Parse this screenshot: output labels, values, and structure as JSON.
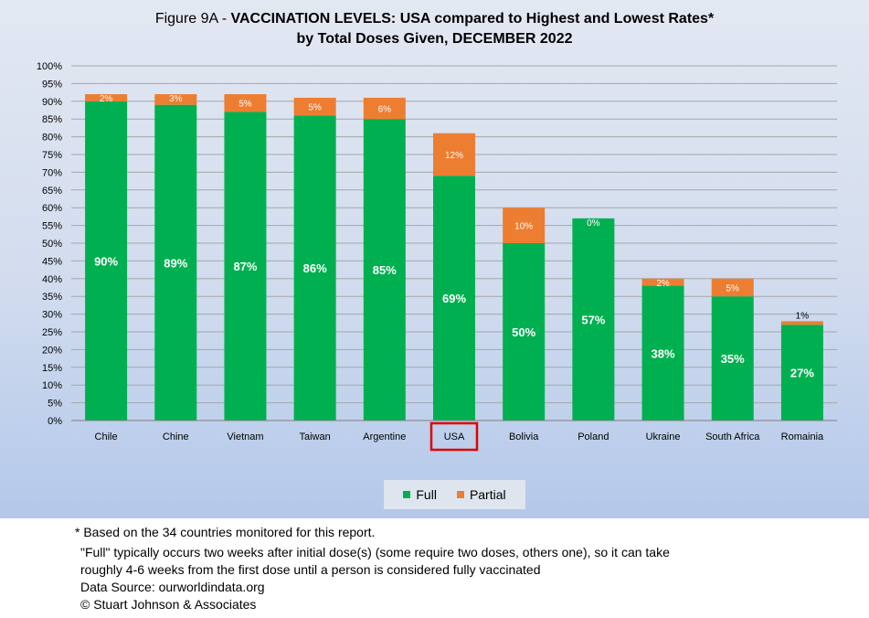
{
  "title": {
    "prefix": "Figure 9A - ",
    "bold": "VACCINATION LEVELS:  USA compared to Highest and Lowest Rates*",
    "line2": "by Total Doses Given, DECEMBER 2022"
  },
  "colors": {
    "full": "#00b050",
    "partial": "#ed7d31",
    "highlight_box": "#e00000"
  },
  "chart_data": {
    "type": "bar",
    "stacked": true,
    "categories": [
      "Chile",
      "Chine",
      "Vietnam",
      "Taiwan",
      "Argentine",
      "USA",
      "Bolivia",
      "Poland",
      "Ukraine",
      "South Africa",
      "Romainia"
    ],
    "series": [
      {
        "name": "Full",
        "values": [
          90,
          89,
          87,
          86,
          85,
          69,
          50,
          57,
          38,
          35,
          27
        ],
        "labels": [
          "90%",
          "89%",
          "87%",
          "86%",
          "85%",
          "69%",
          "50%",
          "57%",
          "38%",
          "35%",
          "27%"
        ]
      },
      {
        "name": "Partial",
        "values": [
          2,
          3,
          5,
          5,
          6,
          12,
          10,
          0,
          2,
          5,
          1
        ],
        "labels": [
          "2%",
          "3%",
          "5%",
          "5%",
          "6%",
          "12%",
          "10%",
          "0%",
          "2%",
          "5%",
          "1%"
        ]
      }
    ],
    "ylim": [
      0,
      100
    ],
    "yticks": [
      "0%",
      "5%",
      "10%",
      "15%",
      "20%",
      "25%",
      "30%",
      "35%",
      "40%",
      "45%",
      "50%",
      "55%",
      "60%",
      "65%",
      "70%",
      "75%",
      "80%",
      "85%",
      "90%",
      "95%",
      "100%"
    ],
    "grid": true,
    "highlighted_category": "USA",
    "legend_position": "bottom"
  },
  "notes": {
    "line1": "* Based on the 34 countries monitored for this report.",
    "line2": "\"Full\" typically occurs two weeks after initial dose(s) (some require two doses, others one),  so it can take",
    "line3": "roughly 4-6 weeks from the first dose until a person is considered fully vaccinated",
    "line4": "Data Source:  ourworldindata.org",
    "line5": "© Stuart Johnson & Associates"
  }
}
